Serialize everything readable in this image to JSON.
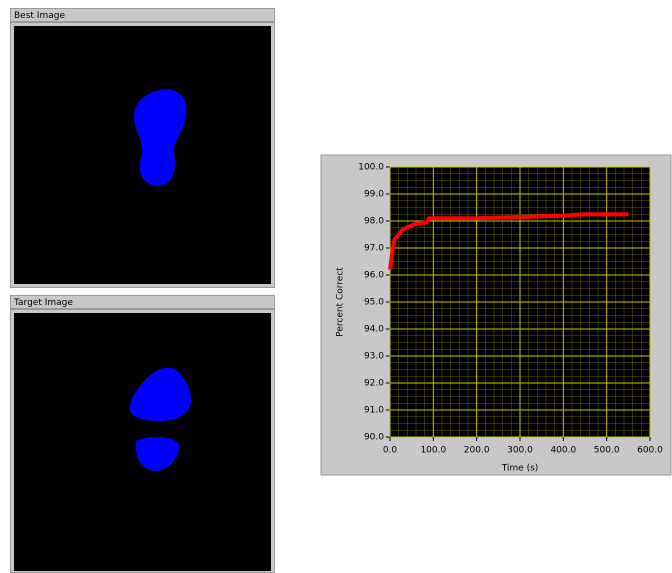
{
  "panels": [
    {
      "title": "Best Image"
    },
    {
      "title": "Target Image"
    }
  ],
  "chart_data": {
    "type": "line",
    "x_label": "Time (s)",
    "y_label": "Percent Correct",
    "x": [
      0,
      5,
      10,
      20,
      30,
      45,
      60,
      85,
      90,
      200,
      300,
      400,
      450,
      550
    ],
    "series": [
      {
        "color": "#ff0000",
        "values": [
          96.2,
          96.8,
          97.3,
          97.5,
          97.7,
          97.8,
          97.9,
          97.95,
          98.1,
          98.1,
          98.15,
          98.2,
          98.25,
          98.25
        ]
      }
    ],
    "xlim": [
      0,
      600
    ],
    "xticks": [
      {
        "value": 0,
        "label": "0.0"
      },
      {
        "value": 100,
        "label": "100.0"
      },
      {
        "value": 200,
        "label": "200.0"
      },
      {
        "value": 300,
        "label": "300.0"
      },
      {
        "value": 400,
        "label": "400.0"
      },
      {
        "value": 500,
        "label": "500.0"
      },
      {
        "value": 600,
        "label": "600.0"
      }
    ],
    "ylim": [
      90,
      100
    ],
    "yticks": [
      {
        "value": 90,
        "label": "90.0"
      },
      {
        "value": 91,
        "label": "91.0"
      },
      {
        "value": 92,
        "label": "92.0"
      },
      {
        "value": 93,
        "label": "93.0"
      },
      {
        "value": 94,
        "label": "94.0"
      },
      {
        "value": 95,
        "label": "95.0"
      },
      {
        "value": 96,
        "label": "96.0"
      },
      {
        "value": 97,
        "label": "97.0"
      },
      {
        "value": 98,
        "label": "98.0"
      },
      {
        "value": 99,
        "label": "99.0"
      },
      {
        "value": 100,
        "label": "100.0"
      }
    ],
    "grid": true,
    "grid_color": "#c8c800",
    "plot_background": "#000000"
  }
}
